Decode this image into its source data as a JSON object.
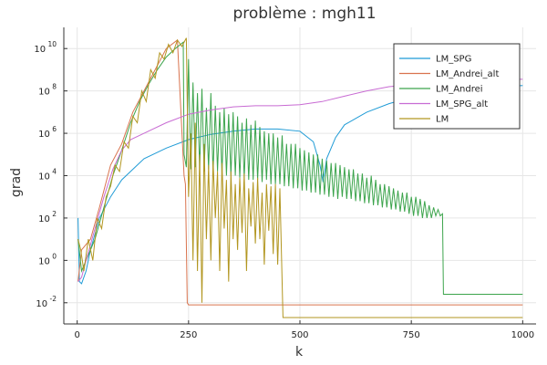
{
  "chart_data": {
    "type": "line",
    "title": "problème : mgh11",
    "xlabel": "k",
    "ylabel": "grad",
    "xlim": [
      -30,
      1030
    ],
    "ylim_log10": [
      -3.0,
      11.0
    ],
    "y_scale": "log10",
    "grid": true,
    "legend_position": "top-right",
    "x_ticks": [
      0,
      250,
      500,
      750,
      1000
    ],
    "y_ticks": [
      {
        "base": "10",
        "exp": "10",
        "log10": 10
      },
      {
        "base": "10",
        "exp": "8",
        "log10": 8
      },
      {
        "base": "10",
        "exp": "6",
        "log10": 6
      },
      {
        "base": "10",
        "exp": "4",
        "log10": 4
      },
      {
        "base": "10",
        "exp": "2",
        "log10": 2
      },
      {
        "base": "10",
        "exp": "0",
        "log10": 0
      },
      {
        "base": "10",
        "exp": "-2",
        "log10": -2
      }
    ],
    "series": [
      {
        "name": "LM_SPG",
        "color": "#1f9bd6",
        "points": [
          [
            2,
            2
          ],
          [
            5,
            -1
          ],
          [
            10,
            -1.1
          ],
          [
            20,
            -0.5
          ],
          [
            30,
            0.5
          ],
          [
            50,
            2
          ],
          [
            75,
            3
          ],
          [
            100,
            3.8
          ],
          [
            150,
            4.8
          ],
          [
            200,
            5.3
          ],
          [
            250,
            5.7
          ],
          [
            300,
            5.95
          ],
          [
            350,
            6.1
          ],
          [
            400,
            6.2
          ],
          [
            450,
            6.2
          ],
          [
            500,
            6.1
          ],
          [
            530,
            5.6
          ],
          [
            545,
            4.5
          ],
          [
            552,
            3.7
          ],
          [
            560,
            4.8
          ],
          [
            580,
            5.8
          ],
          [
            600,
            6.4
          ],
          [
            650,
            7.0
          ],
          [
            700,
            7.4
          ],
          [
            750,
            7.7
          ],
          [
            800,
            7.9
          ],
          [
            850,
            8.05
          ],
          [
            900,
            8.15
          ],
          [
            950,
            8.2
          ],
          [
            1000,
            8.25
          ]
        ]
      },
      {
        "name": "LM_Andrei_alt",
        "color": "#d9734e",
        "points": [
          [
            2,
            -1
          ],
          [
            10,
            0.5
          ],
          [
            30,
            1
          ],
          [
            50,
            2.5
          ],
          [
            75,
            4.5
          ],
          [
            100,
            5.5
          ],
          [
            125,
            7
          ],
          [
            150,
            8
          ],
          [
            175,
            9
          ],
          [
            200,
            10
          ],
          [
            225,
            10.4
          ],
          [
            240,
            4
          ],
          [
            243,
            3.6
          ],
          [
            247,
            -2
          ],
          [
            250,
            -2.1
          ],
          [
            1000,
            -2.1
          ]
        ]
      },
      {
        "name": "LM_Andrei",
        "color": "#3ca44c",
        "points": [
          [
            2,
            1
          ],
          [
            10,
            -0.5
          ],
          [
            20,
            0
          ],
          [
            30,
            0.5
          ],
          [
            40,
            1
          ],
          [
            60,
            2.5
          ],
          [
            80,
            4
          ],
          [
            100,
            5.2
          ],
          [
            120,
            6.5
          ],
          [
            140,
            7.5
          ],
          [
            160,
            8.3
          ],
          [
            180,
            9
          ],
          [
            200,
            9.6
          ],
          [
            220,
            10
          ],
          [
            238,
            10.3
          ],
          [
            240,
            5
          ],
          [
            245,
            4.4
          ],
          [
            250,
            9.5
          ],
          [
            255,
            4.3
          ],
          [
            260,
            8.4
          ],
          [
            265,
            4.4
          ],
          [
            270,
            7.9
          ],
          [
            275,
            4.3
          ],
          [
            280,
            8.1
          ],
          [
            285,
            4.2
          ],
          [
            290,
            7.2
          ],
          [
            295,
            4.3
          ],
          [
            300,
            7.9
          ],
          [
            305,
            4.1
          ],
          [
            310,
            7.3
          ],
          [
            315,
            4.2
          ],
          [
            320,
            7.0
          ],
          [
            325,
            4.1
          ],
          [
            330,
            7.2
          ],
          [
            335,
            4.0
          ],
          [
            340,
            6.9
          ],
          [
            345,
            4.0
          ],
          [
            350,
            7.0
          ],
          [
            355,
            4.0
          ],
          [
            360,
            6.8
          ],
          [
            365,
            3.9
          ],
          [
            370,
            6.5
          ],
          [
            375,
            3.9
          ],
          [
            380,
            6.7
          ],
          [
            385,
            3.8
          ],
          [
            390,
            6.4
          ],
          [
            395,
            3.8
          ],
          [
            400,
            6.6
          ],
          [
            405,
            3.8
          ],
          [
            410,
            6.3
          ],
          [
            415,
            3.7
          ],
          [
            420,
            6.1
          ],
          [
            425,
            3.8
          ],
          [
            430,
            6.0
          ],
          [
            435,
            3.6
          ],
          [
            440,
            6.0
          ],
          [
            445,
            3.6
          ],
          [
            450,
            5.8
          ],
          [
            455,
            3.6
          ],
          [
            460,
            5.9
          ],
          [
            465,
            3.5
          ],
          [
            470,
            5.5
          ],
          [
            475,
            3.5
          ],
          [
            480,
            5.5
          ],
          [
            485,
            3.4
          ],
          [
            490,
            5.5
          ],
          [
            495,
            3.4
          ],
          [
            500,
            5.3
          ],
          [
            505,
            3.3
          ],
          [
            510,
            5.2
          ],
          [
            515,
            3.3
          ],
          [
            520,
            5.1
          ],
          [
            525,
            3.2
          ],
          [
            530,
            5.0
          ],
          [
            535,
            3.2
          ],
          [
            540,
            5.0
          ],
          [
            545,
            3.1
          ],
          [
            550,
            4.8
          ],
          [
            555,
            3.1
          ],
          [
            560,
            4.7
          ],
          [
            565,
            3.0
          ],
          [
            570,
            4.6
          ],
          [
            575,
            3.0
          ],
          [
            580,
            4.6
          ],
          [
            585,
            2.9
          ],
          [
            590,
            4.5
          ],
          [
            595,
            3.0
          ],
          [
            600,
            4.4
          ],
          [
            605,
            2.9
          ],
          [
            610,
            4.3
          ],
          [
            615,
            2.9
          ],
          [
            620,
            4.3
          ],
          [
            625,
            2.8
          ],
          [
            630,
            4.1
          ],
          [
            635,
            2.8
          ],
          [
            640,
            4.1
          ],
          [
            645,
            2.7
          ],
          [
            650,
            3.9
          ],
          [
            655,
            2.7
          ],
          [
            660,
            4.0
          ],
          [
            665,
            2.6
          ],
          [
            670,
            3.8
          ],
          [
            675,
            2.6
          ],
          [
            680,
            3.6
          ],
          [
            685,
            2.5
          ],
          [
            690,
            3.6
          ],
          [
            695,
            2.5
          ],
          [
            700,
            3.5
          ],
          [
            705,
            2.4
          ],
          [
            710,
            3.4
          ],
          [
            715,
            2.4
          ],
          [
            720,
            3.3
          ],
          [
            725,
            2.3
          ],
          [
            730,
            3.2
          ],
          [
            735,
            2.3
          ],
          [
            740,
            3.2
          ],
          [
            745,
            2.2
          ],
          [
            750,
            3.0
          ],
          [
            755,
            2.1
          ],
          [
            760,
            3.0
          ],
          [
            765,
            2.1
          ],
          [
            770,
            2.9
          ],
          [
            775,
            2.0
          ],
          [
            780,
            2.8
          ],
          [
            785,
            2.0
          ],
          [
            790,
            2.6
          ],
          [
            795,
            2.0
          ],
          [
            800,
            2.5
          ],
          [
            805,
            2.1
          ],
          [
            810,
            2.4
          ],
          [
            815,
            2.1
          ],
          [
            820,
            2.2
          ],
          [
            822,
            -1.6
          ],
          [
            1000,
            -1.6
          ]
        ]
      },
      {
        "name": "LM_SPG_alt",
        "color": "#c86bd3",
        "points": [
          [
            2,
            -1
          ],
          [
            10,
            -0.8
          ],
          [
            20,
            0
          ],
          [
            40,
            1.5
          ],
          [
            60,
            3
          ],
          [
            80,
            4.3
          ],
          [
            100,
            5.2
          ],
          [
            120,
            5.7
          ],
          [
            150,
            6.0
          ],
          [
            200,
            6.5
          ],
          [
            250,
            6.9
          ],
          [
            300,
            7.1
          ],
          [
            350,
            7.25
          ],
          [
            400,
            7.3
          ],
          [
            450,
            7.3
          ],
          [
            500,
            7.35
          ],
          [
            550,
            7.5
          ],
          [
            600,
            7.75
          ],
          [
            650,
            8.0
          ],
          [
            700,
            8.2
          ],
          [
            750,
            8.3
          ],
          [
            800,
            8.4
          ],
          [
            850,
            8.45
          ],
          [
            900,
            8.5
          ],
          [
            950,
            8.55
          ],
          [
            1000,
            8.55
          ]
        ]
      },
      {
        "name": "LM",
        "color": "#b29620",
        "points": [
          [
            2,
            1
          ],
          [
            8,
            0.5
          ],
          [
            15,
            -0.5
          ],
          [
            25,
            1
          ],
          [
            35,
            0
          ],
          [
            45,
            2
          ],
          [
            55,
            1.5
          ],
          [
            65,
            3
          ],
          [
            75,
            3.5
          ],
          [
            85,
            4.5
          ],
          [
            95,
            4.2
          ],
          [
            105,
            5.6
          ],
          [
            115,
            5.3
          ],
          [
            125,
            6.8
          ],
          [
            135,
            6.5
          ],
          [
            145,
            8
          ],
          [
            155,
            7.5
          ],
          [
            165,
            9
          ],
          [
            175,
            8.6
          ],
          [
            185,
            9.8
          ],
          [
            195,
            9.5
          ],
          [
            205,
            10.2
          ],
          [
            215,
            9.8
          ],
          [
            225,
            10.4
          ],
          [
            235,
            10.1
          ],
          [
            245,
            10.5
          ],
          [
            250,
            3.0
          ],
          [
            255,
            6.0
          ],
          [
            260,
            0
          ],
          [
            265,
            6.5
          ],
          [
            270,
            -0.5
          ],
          [
            275,
            5
          ],
          [
            280,
            -2
          ],
          [
            285,
            5.5
          ],
          [
            290,
            1
          ],
          [
            295,
            4.5
          ],
          [
            300,
            0
          ],
          [
            305,
            4.7
          ],
          [
            310,
            2
          ],
          [
            315,
            4.2
          ],
          [
            320,
            -0.5
          ],
          [
            325,
            4.6
          ],
          [
            330,
            1.5
          ],
          [
            335,
            3.8
          ],
          [
            340,
            -1
          ],
          [
            345,
            4.2
          ],
          [
            350,
            1
          ],
          [
            355,
            3.6
          ],
          [
            360,
            0.5
          ],
          [
            365,
            3.9
          ],
          [
            370,
            1.3
          ],
          [
            375,
            4.1
          ],
          [
            380,
            -0.5
          ],
          [
            385,
            3.4
          ],
          [
            390,
            1.6
          ],
          [
            395,
            3.7
          ],
          [
            400,
            0.8
          ],
          [
            405,
            3.9
          ],
          [
            410,
            1
          ],
          [
            415,
            3.2
          ],
          [
            420,
            -0.2
          ],
          [
            425,
            3.6
          ],
          [
            430,
            1.4
          ],
          [
            435,
            3.5
          ],
          [
            440,
            0.3
          ],
          [
            445,
            3.6
          ],
          [
            450,
            -0.2
          ],
          [
            455,
            3.4
          ],
          [
            462,
            -2.7
          ],
          [
            1000,
            -2.7
          ]
        ]
      }
    ]
  }
}
